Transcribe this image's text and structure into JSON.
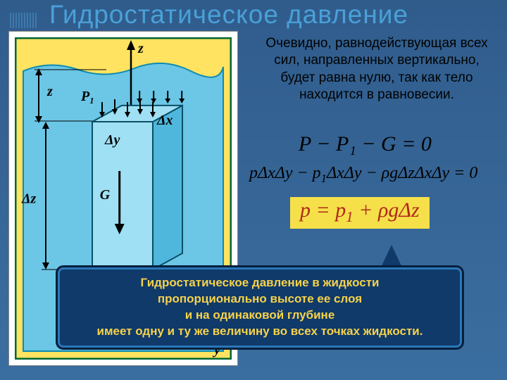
{
  "colors": {
    "slide_bg_top": "#305c8c",
    "slide_bg_bottom": "#3b6ea0",
    "title_color": "#4aa0d8",
    "ruler_color": "#3d79ac",
    "figure_outer_bg": "#ffe361",
    "figure_border": "#006633",
    "water_fill": "#6cc6e6",
    "water_edge": "#0d8bb2",
    "cube_face_light": "#9fe0f4",
    "cube_face_dark": "#4fb7dc",
    "diagram_label": "#000000",
    "body_text": "#010101",
    "eq_color": "#000000",
    "eq_box_bg": "#f6e04a",
    "eq_box_text": "#b02a1a",
    "callout_bg": "#0f3a6a",
    "callout_border_outer": "#071f3d",
    "callout_border_inner": "#2b77b8",
    "callout_text": "#f7d24a"
  },
  "title": "Гидростатическое давление",
  "body_text_lines": [
    "Очевидно, равнодействующая всех",
    "сил, направленных вертикально,",
    "будет равна нулю, так как тело",
    "находится в равновесии."
  ],
  "equations": {
    "eq1": "P − P₁ − G = 0",
    "eq2_html": "pΔxΔy − p<sub>1</sub>ΔxΔy − ρgΔzΔxΔy = 0",
    "eq3_html": "p = p<sub>1</sub> + ρgΔz"
  },
  "callout_lines": [
    "Гидростатическое давление в жидкости",
    "пропорционально высоте ее слоя",
    "и на одинаковой глубине",
    "имеет одну и ту же величину во всех точках жидкости."
  ],
  "diagram": {
    "labels": {
      "z_axis": "z",
      "y_axis": "y",
      "P1": "P₁",
      "G": "G",
      "dx": "Δx",
      "dy": "Δy",
      "dz": "Δz",
      "z_depth": "z"
    },
    "label_font_size": 20,
    "label_font_weight": "bold",
    "label_font_style": "italic"
  }
}
